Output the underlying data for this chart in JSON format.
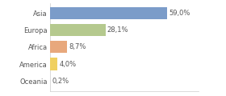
{
  "categories": [
    "Asia",
    "Europa",
    "Africa",
    "America",
    "Oceania"
  ],
  "values": [
    59.0,
    28.1,
    8.7,
    4.0,
    0.2
  ],
  "labels": [
    "59,0%",
    "28,1%",
    "8,7%",
    "4,0%",
    "0,2%"
  ],
  "bar_colors": [
    "#7b9cc9",
    "#b5c98e",
    "#e8a87c",
    "#f0d060",
    "#cccccc"
  ],
  "background_color": "#ffffff",
  "xlim": [
    0,
    75
  ],
  "bar_height": 0.72,
  "label_fontsize": 6.0,
  "category_fontsize": 6.0,
  "text_color": "#555555",
  "grid_color": "#cccccc"
}
